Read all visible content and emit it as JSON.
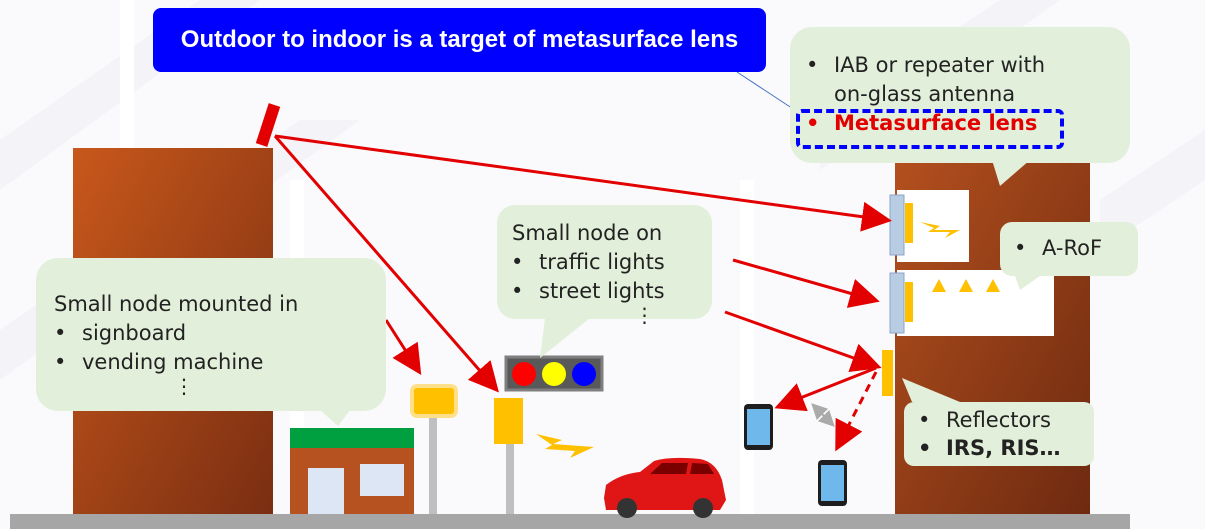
{
  "title": "Outdoor to indoor is a target of metasurface lens",
  "callouts": {
    "iab": {
      "items": [
        "IAB or repeater with on-glass antenna",
        "Metasurface lens"
      ]
    },
    "aro": {
      "items": [
        "A-RoF"
      ]
    },
    "traffic": {
      "heading": "Small node on",
      "items": [
        "traffic lights",
        "street lights"
      ],
      "more": "⋮"
    },
    "signboard": {
      "heading": "Small node mounted in",
      "items": [
        "signboard",
        "vending machine"
      ],
      "more": "⋮"
    },
    "reflectors": {
      "items": [
        "Reflectors",
        "IRS, RIS…"
      ]
    }
  },
  "colors": {
    "title_bg": "#0000ff",
    "callout_bg": "#e2efda",
    "building": "#b6521f",
    "arrow": "#e30000",
    "highlight_box": "#0000ff",
    "node": "#ffc000"
  },
  "icons": [
    "antenna-icon",
    "traffic-light-icon",
    "car-icon",
    "smartphone-icon",
    "lightning-icon",
    "shop-icon"
  ]
}
